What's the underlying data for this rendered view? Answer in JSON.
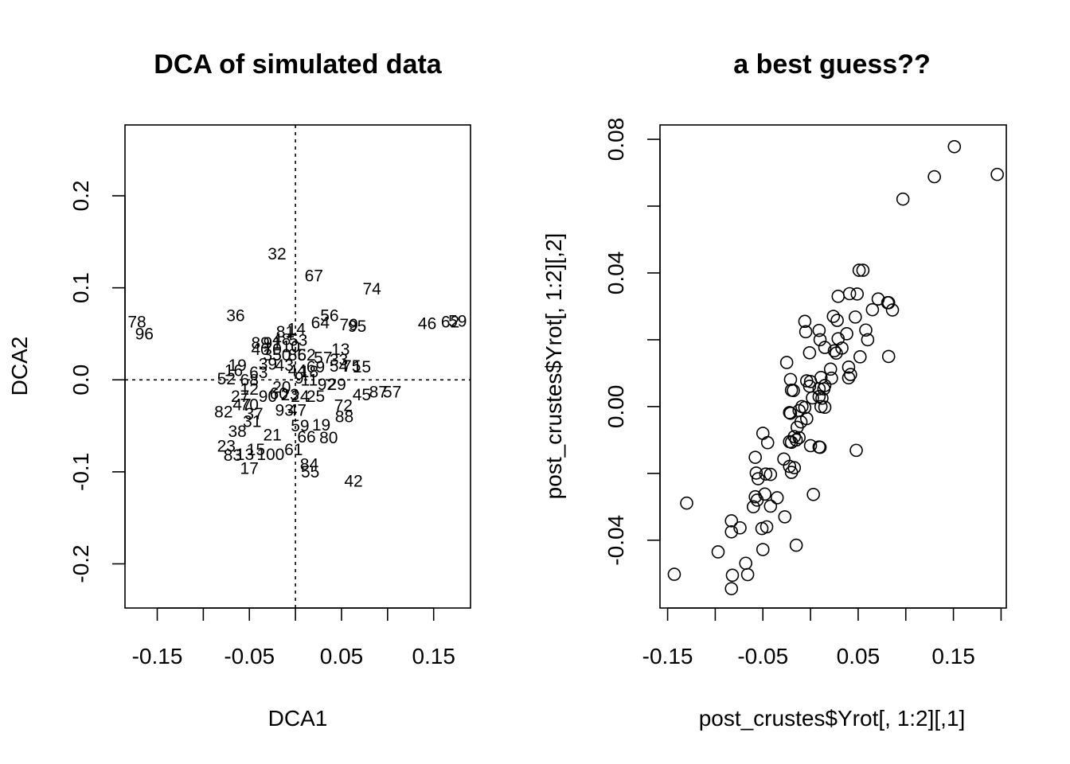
{
  "chart_data": [
    {
      "type": "scatter",
      "title": "DCA of simulated data",
      "xlabel": "DCA1",
      "ylabel": "DCA2",
      "xlim": [
        -0.185,
        0.19
      ],
      "ylim": [
        -0.248,
        0.277
      ],
      "xticks": [
        -0.15,
        -0.1,
        -0.05,
        0,
        0.05,
        0.1,
        0.15
      ],
      "xticklabels": [
        "-0.15",
        "",
        "-0.05",
        "",
        "0.05",
        "",
        "0.15"
      ],
      "yticks": [
        -0.2,
        -0.1,
        0.0,
        0.1,
        0.2
      ],
      "yticklabels": [
        "-0.2",
        "-0.1",
        "0.0",
        "0.1",
        "0.2"
      ],
      "reference_lines": {
        "x": 0,
        "y": 0,
        "style": "dotted"
      },
      "grid": false,
      "labels": [
        {
          "t": "32",
          "x": -0.02,
          "y": 0.137
        },
        {
          "t": "67",
          "x": 0.02,
          "y": 0.113
        },
        {
          "t": "74",
          "x": 0.083,
          "y": 0.099
        },
        {
          "t": "78",
          "x": -0.172,
          "y": 0.063
        },
        {
          "t": "96",
          "x": -0.164,
          "y": 0.05
        },
        {
          "t": "36",
          "x": -0.065,
          "y": 0.07
        },
        {
          "t": "56",
          "x": 0.037,
          "y": 0.07
        },
        {
          "t": "64",
          "x": 0.027,
          "y": 0.062
        },
        {
          "t": "79",
          "x": 0.058,
          "y": 0.06
        },
        {
          "t": "95",
          "x": 0.067,
          "y": 0.058
        },
        {
          "t": "46",
          "x": 0.143,
          "y": 0.061
        },
        {
          "t": "62",
          "x": 0.168,
          "y": 0.063
        },
        {
          "t": "59",
          "x": 0.176,
          "y": 0.064
        },
        {
          "t": "81",
          "x": -0.011,
          "y": 0.052
        },
        {
          "t": "14",
          "x": 0.001,
          "y": 0.055
        },
        {
          "t": "89",
          "x": -0.038,
          "y": 0.04
        },
        {
          "t": "91",
          "x": -0.025,
          "y": 0.04
        },
        {
          "t": "48",
          "x": -0.015,
          "y": 0.044
        },
        {
          "t": "53",
          "x": 0.003,
          "y": 0.043
        },
        {
          "t": "40",
          "x": -0.038,
          "y": 0.033
        },
        {
          "t": "70",
          "x": -0.025,
          "y": 0.033
        },
        {
          "t": "10",
          "x": -0.005,
          "y": 0.036
        },
        {
          "t": "13",
          "x": 0.049,
          "y": 0.033
        },
        {
          "t": "35",
          "x": -0.025,
          "y": 0.027
        },
        {
          "t": "50",
          "x": -0.015,
          "y": 0.027
        },
        {
          "t": "86",
          "x": 0.002,
          "y": 0.027
        },
        {
          "t": "52",
          "x": 0.012,
          "y": 0.027
        },
        {
          "t": "57",
          "x": 0.03,
          "y": 0.024
        },
        {
          "t": "33",
          "x": 0.047,
          "y": 0.022
        },
        {
          "t": "39",
          "x": -0.03,
          "y": 0.017
        },
        {
          "t": "19",
          "x": -0.063,
          "y": 0.016
        },
        {
          "t": "43",
          "x": -0.012,
          "y": 0.016
        },
        {
          "t": "69",
          "x": 0.022,
          "y": 0.014
        },
        {
          "t": "54",
          "x": 0.047,
          "y": 0.015
        },
        {
          "t": "75",
          "x": 0.061,
          "y": 0.015
        },
        {
          "t": "15",
          "x": 0.072,
          "y": 0.014
        },
        {
          "t": "16",
          "x": -0.067,
          "y": 0.01
        },
        {
          "t": "63",
          "x": -0.04,
          "y": 0.008
        },
        {
          "t": "44",
          "x": 0.002,
          "y": 0.01
        },
        {
          "t": "18",
          "x": 0.015,
          "y": 0.009
        },
        {
          "t": "52",
          "x": -0.075,
          "y": 0.001
        },
        {
          "t": "68",
          "x": -0.05,
          "y": 0.0
        },
        {
          "t": "9",
          "x": 0.004,
          "y": 0.002
        },
        {
          "t": "11",
          "x": 0.015,
          "y": 0.0
        },
        {
          "t": "92",
          "x": 0.034,
          "y": -0.005
        },
        {
          "t": "29",
          "x": 0.045,
          "y": -0.005
        },
        {
          "t": "12",
          "x": -0.05,
          "y": -0.01
        },
        {
          "t": "20",
          "x": -0.015,
          "y": -0.008
        },
        {
          "t": "27",
          "x": -0.06,
          "y": -0.018
        },
        {
          "t": "90",
          "x": -0.03,
          "y": -0.018
        },
        {
          "t": "60",
          "x": -0.018,
          "y": -0.015
        },
        {
          "t": "23",
          "x": -0.006,
          "y": -0.016
        },
        {
          "t": "24",
          "x": 0.005,
          "y": -0.018
        },
        {
          "t": "25",
          "x": 0.022,
          "y": -0.018
        },
        {
          "t": "45",
          "x": 0.072,
          "y": -0.016
        },
        {
          "t": "87",
          "x": 0.09,
          "y": -0.013
        },
        {
          "t": "57",
          "x": 0.105,
          "y": -0.013
        },
        {
          "t": "47",
          "x": -0.058,
          "y": -0.027
        },
        {
          "t": "70",
          "x": -0.05,
          "y": -0.027
        },
        {
          "t": "72",
          "x": 0.052,
          "y": -0.028
        },
        {
          "t": "82",
          "x": -0.078,
          "y": -0.035
        },
        {
          "t": "37",
          "x": -0.045,
          "y": -0.037
        },
        {
          "t": "93",
          "x": -0.012,
          "y": -0.033
        },
        {
          "t": "47",
          "x": 0.002,
          "y": -0.033
        },
        {
          "t": "88",
          "x": 0.053,
          "y": -0.04
        },
        {
          "t": "31",
          "x": -0.047,
          "y": -0.045
        },
        {
          "t": "59",
          "x": 0.005,
          "y": -0.05
        },
        {
          "t": "19",
          "x": 0.028,
          "y": -0.049
        },
        {
          "t": "38",
          "x": -0.063,
          "y": -0.056
        },
        {
          "t": "21",
          "x": -0.025,
          "y": -0.06
        },
        {
          "t": "66",
          "x": 0.012,
          "y": -0.062
        },
        {
          "t": "80",
          "x": 0.036,
          "y": -0.063
        },
        {
          "t": "23",
          "x": -0.075,
          "y": -0.072
        },
        {
          "t": "61",
          "x": -0.002,
          "y": -0.076
        },
        {
          "t": "83",
          "x": -0.068,
          "y": -0.082
        },
        {
          "t": "13",
          "x": -0.055,
          "y": -0.081
        },
        {
          "t": "15",
          "x": -0.043,
          "y": -0.076
        },
        {
          "t": "100",
          "x": -0.027,
          "y": -0.081
        },
        {
          "t": "17",
          "x": -0.05,
          "y": -0.096
        },
        {
          "t": "84",
          "x": 0.015,
          "y": -0.092
        },
        {
          "t": "55",
          "x": 0.016,
          "y": -0.1
        },
        {
          "t": "42",
          "x": 0.063,
          "y": -0.11
        }
      ]
    },
    {
      "type": "scatter",
      "title": "a best guess??",
      "xlabel": "post_crustes$Yrot[, 1:2][,1]",
      "ylabel": "post_crustes$Yrot[, 1:2][,2]",
      "xlim": [
        -0.158,
        0.2055
      ],
      "ylim": [
        -0.0603,
        0.0843
      ],
      "xticks": [
        -0.15,
        -0.1,
        -0.05,
        0,
        0.05,
        0.1,
        0.15,
        0.2
      ],
      "xticklabels": [
        "-0.15",
        "",
        "-0.05",
        "",
        "0.05",
        "",
        "0.15",
        ""
      ],
      "yticks": [
        -0.04,
        -0.02,
        0.0,
        0.02,
        0.04,
        0.06,
        0.08
      ],
      "yticklabels": [
        "-0.04",
        "",
        "0.00",
        "",
        "0.04",
        "",
        "0.08"
      ],
      "grid": false,
      "points": [
        [
          0.151,
          0.0778
        ],
        [
          0.196,
          0.0695
        ],
        [
          0.13,
          0.0688
        ],
        [
          0.097,
          0.0621
        ],
        [
          0.051,
          0.0408
        ],
        [
          0.055,
          0.0408
        ],
        [
          0.041,
          0.0338
        ],
        [
          0.049,
          0.0337
        ],
        [
          0.029,
          0.033
        ],
        [
          0.071,
          0.0322
        ],
        [
          0.081,
          0.0311
        ],
        [
          0.082,
          0.0311
        ],
        [
          0.065,
          0.029
        ],
        [
          0.086,
          0.0289
        ],
        [
          0.024,
          0.027
        ],
        [
          0.028,
          0.0258
        ],
        [
          0.047,
          0.0268
        ],
        [
          -0.006,
          0.0255
        ],
        [
          0.009,
          0.0228
        ],
        [
          0.058,
          0.0229
        ],
        [
          -0.005,
          0.0224
        ],
        [
          0.038,
          0.0218
        ],
        [
          0.029,
          0.0203
        ],
        [
          0.01,
          0.02
        ],
        [
          0.06,
          0.02
        ],
        [
          0.015,
          0.0177
        ],
        [
          0.033,
          0.0175
        ],
        [
          0.025,
          0.0167
        ],
        [
          0.027,
          0.016
        ],
        [
          -0.001,
          0.0161
        ],
        [
          0.052,
          0.0149
        ],
        [
          0.082,
          0.015
        ],
        [
          -0.025,
          0.0132
        ],
        [
          0.04,
          0.0118
        ],
        [
          0.021,
          0.0112
        ],
        [
          0.042,
          0.0096
        ],
        [
          0.04,
          0.0086
        ],
        [
          0.011,
          0.0087
        ],
        [
          0.022,
          0.0085
        ],
        [
          -0.021,
          0.0081
        ],
        [
          -0.004,
          0.0077
        ],
        [
          0.0,
          0.0075
        ],
        [
          0.015,
          0.0063
        ],
        [
          -0.001,
          0.0061
        ],
        [
          0.009,
          0.0053
        ],
        [
          0.014,
          0.0053
        ],
        [
          -0.02,
          0.0049
        ],
        [
          -0.018,
          0.0048
        ],
        [
          0.009,
          0.003
        ],
        [
          0.012,
          0.0025
        ],
        [
          0.002,
          0.0026
        ],
        [
          0.011,
          0.0
        ],
        [
          -0.009,
          0.0
        ],
        [
          0.015,
          -0.0002
        ],
        [
          -0.006,
          -0.0003
        ],
        [
          -0.012,
          -0.0012
        ],
        [
          -0.022,
          -0.0018
        ],
        [
          -0.021,
          -0.002
        ],
        [
          -0.004,
          -0.0036
        ],
        [
          -0.01,
          -0.0046
        ],
        [
          -0.014,
          -0.0062
        ],
        [
          -0.05,
          -0.008
        ],
        [
          -0.017,
          -0.009
        ],
        [
          -0.012,
          -0.0093
        ],
        [
          -0.015,
          -0.01
        ],
        [
          -0.022,
          -0.0105
        ],
        [
          -0.02,
          -0.0107
        ],
        [
          -0.045,
          -0.0108
        ],
        [
          0.0,
          -0.0117
        ],
        [
          0.009,
          -0.0121
        ],
        [
          0.01,
          -0.0122
        ],
        [
          0.048,
          -0.0131
        ],
        [
          -0.058,
          -0.0152
        ],
        [
          -0.028,
          -0.0157
        ],
        [
          -0.022,
          -0.0179
        ],
        [
          -0.017,
          -0.0183
        ],
        [
          -0.02,
          -0.0197
        ],
        [
          -0.057,
          -0.0199
        ],
        [
          -0.047,
          -0.0202
        ],
        [
          -0.042,
          -0.0203
        ],
        [
          -0.055,
          -0.0216
        ],
        [
          -0.058,
          -0.027
        ],
        [
          -0.035,
          -0.0273
        ],
        [
          -0.048,
          -0.0262
        ],
        [
          0.003,
          -0.0263
        ],
        [
          -0.056,
          -0.028
        ],
        [
          -0.13,
          -0.0289
        ],
        [
          -0.042,
          -0.0298
        ],
        [
          -0.06,
          -0.03
        ],
        [
          -0.027,
          -0.033
        ],
        [
          -0.083,
          -0.0342
        ],
        [
          -0.046,
          -0.036
        ],
        [
          -0.074,
          -0.0363
        ],
        [
          -0.051,
          -0.0365
        ],
        [
          -0.083,
          -0.0375
        ],
        [
          -0.015,
          -0.0415
        ],
        [
          -0.05,
          -0.0428
        ],
        [
          -0.097,
          -0.0435
        ],
        [
          -0.068,
          -0.0469
        ],
        [
          -0.143,
          -0.0502
        ],
        [
          -0.082,
          -0.0505
        ],
        [
          -0.066,
          -0.0503
        ],
        [
          -0.083,
          -0.0545
        ]
      ]
    }
  ]
}
